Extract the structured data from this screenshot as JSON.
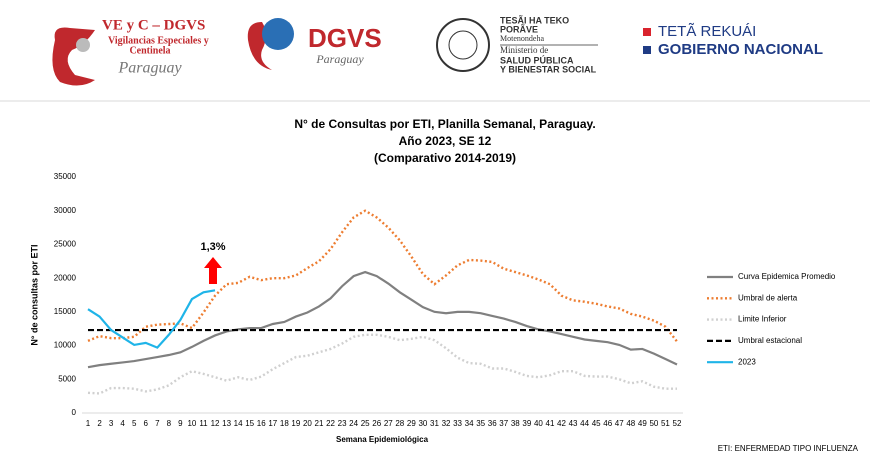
{
  "header": {
    "logo_1": {
      "title": "VE y C – DGVS",
      "line_1": "Vigilancias Especiales y",
      "line_2": "Centinela",
      "place": "Paraguay"
    },
    "logo_2": {
      "title": "DGVS",
      "place": "Paraguay"
    },
    "logo_3": {
      "line_1": "TESÃI HA TEKO",
      "line_2": "PORÃVE",
      "line_3": "Motenondeha",
      "line_4": "Ministerio de",
      "line_5": "SALUD PÚBLICA",
      "line_6": "Y BIENESTAR SOCIAL"
    },
    "logo_4": {
      "line_1": "TETÃ REKUÁI",
      "line_2": "GOBIERNO NACIONAL"
    }
  },
  "chart_data": {
    "type": "line",
    "title": [
      "N° de Consultas por ETI, Planilla Semanal, Paraguay.",
      "Año 2023, SE 12",
      "(Comparativo 2014-2019)"
    ],
    "x_label": "Semana Epidemiológica",
    "y_label": "N° de consultas por ETI",
    "annotation": "1,3%",
    "footnote": "ETI: ENFERMEDAD TIPO INFLUENZA",
    "categories": [
      "1",
      "2",
      "3",
      "4",
      "5",
      "6",
      "7",
      "8",
      "9",
      "10",
      "11",
      "12",
      "13",
      "14",
      "15",
      "16",
      "17",
      "18",
      "19",
      "20",
      "21",
      "22",
      "23",
      "24",
      "25",
      "26",
      "27",
      "28",
      "29",
      "30",
      "31",
      "32",
      "33",
      "34",
      "35",
      "36",
      "37",
      "38",
      "39",
      "40",
      "41",
      "42",
      "43",
      "44",
      "45",
      "46",
      "47",
      "48",
      "49",
      "50",
      "51",
      "52"
    ],
    "ylim": [
      0,
      35000
    ],
    "yticks": [
      0,
      5000,
      10000,
      15000,
      20000,
      25000,
      30000,
      35000
    ],
    "legend": "right",
    "series": [
      {
        "name": "Curva Epidemica Promedio",
        "color": "#808080",
        "dash": "solid",
        "values": [
          6800,
          7100,
          7300,
          7500,
          7700,
          8000,
          8300,
          8600,
          9000,
          9800,
          10700,
          11500,
          12100,
          12400,
          12600,
          12600,
          13200,
          13500,
          14300,
          14900,
          15800,
          17000,
          18800,
          20300,
          20900,
          20300,
          19200,
          17900,
          16800,
          15700,
          15000,
          14800,
          15000,
          15000,
          14800,
          14400,
          14000,
          13500,
          12900,
          12400,
          12100,
          11700,
          11300,
          10900,
          10700,
          10500,
          10100,
          9400,
          9500,
          8800,
          8000,
          7200
        ]
      },
      {
        "name": "Umbral de alerta",
        "color": "#ed7d31",
        "dash": "dotted",
        "values": [
          10700,
          11400,
          11100,
          11100,
          11300,
          12800,
          13100,
          13200,
          13300,
          12600,
          14900,
          17400,
          19100,
          19300,
          20200,
          19700,
          20000,
          20000,
          20400,
          21500,
          22500,
          24300,
          26800,
          29000,
          30000,
          29000,
          27500,
          25600,
          23200,
          20600,
          19100,
          20400,
          21900,
          22700,
          22600,
          22400,
          21400,
          20900,
          20400,
          19800,
          19100,
          17400,
          16700,
          16500,
          16200,
          15800,
          15500,
          14700,
          14300,
          13700,
          12800,
          10600
        ]
      },
      {
        "name": "Limite Inferior",
        "color": "#d0d0d0",
        "dash": "dotted",
        "values": [
          3000,
          2900,
          3700,
          3700,
          3600,
          3200,
          3500,
          4100,
          5300,
          6200,
          5800,
          5300,
          4800,
          5300,
          4900,
          5400,
          6500,
          7400,
          8300,
          8500,
          9000,
          9500,
          10300,
          11300,
          11600,
          11600,
          11300,
          10800,
          11000,
          11300,
          10800,
          9600,
          8200,
          7400,
          7300,
          6600,
          6600,
          6100,
          5500,
          5300,
          5600,
          6200,
          6200,
          5500,
          5400,
          5400,
          5000,
          4400,
          4700,
          3900,
          3600,
          3600
        ]
      },
      {
        "name": "Umbral estacional",
        "color": "#000000",
        "dash": "dashed",
        "values": [
          12300,
          12300,
          12300,
          12300,
          12300,
          12300,
          12300,
          12300,
          12300,
          12300,
          12300,
          12300,
          12300,
          12300,
          12300,
          12300,
          12300,
          12300,
          12300,
          12300,
          12300,
          12300,
          12300,
          12300,
          12300,
          12300,
          12300,
          12300,
          12300,
          12300,
          12300,
          12300,
          12300,
          12300,
          12300,
          12300,
          12300,
          12300,
          12300,
          12300,
          12300,
          12300,
          12300,
          12300,
          12300,
          12300,
          12300,
          12300,
          12300,
          12300,
          12300,
          12300
        ]
      },
      {
        "name": "2023",
        "color": "#1fb4e8",
        "dash": "solid",
        "values": [
          15400,
          14300,
          12300,
          11200,
          10100,
          10400,
          9700,
          11600,
          13800,
          16900,
          17900,
          18200,
          null,
          null,
          null,
          null,
          null,
          null,
          null,
          null,
          null,
          null,
          null,
          null,
          null,
          null,
          null,
          null,
          null,
          null,
          null,
          null,
          null,
          null,
          null,
          null,
          null,
          null,
          null,
          null,
          null,
          null,
          null,
          null,
          null,
          null,
          null,
          null,
          null,
          null,
          null,
          null
        ]
      }
    ]
  }
}
